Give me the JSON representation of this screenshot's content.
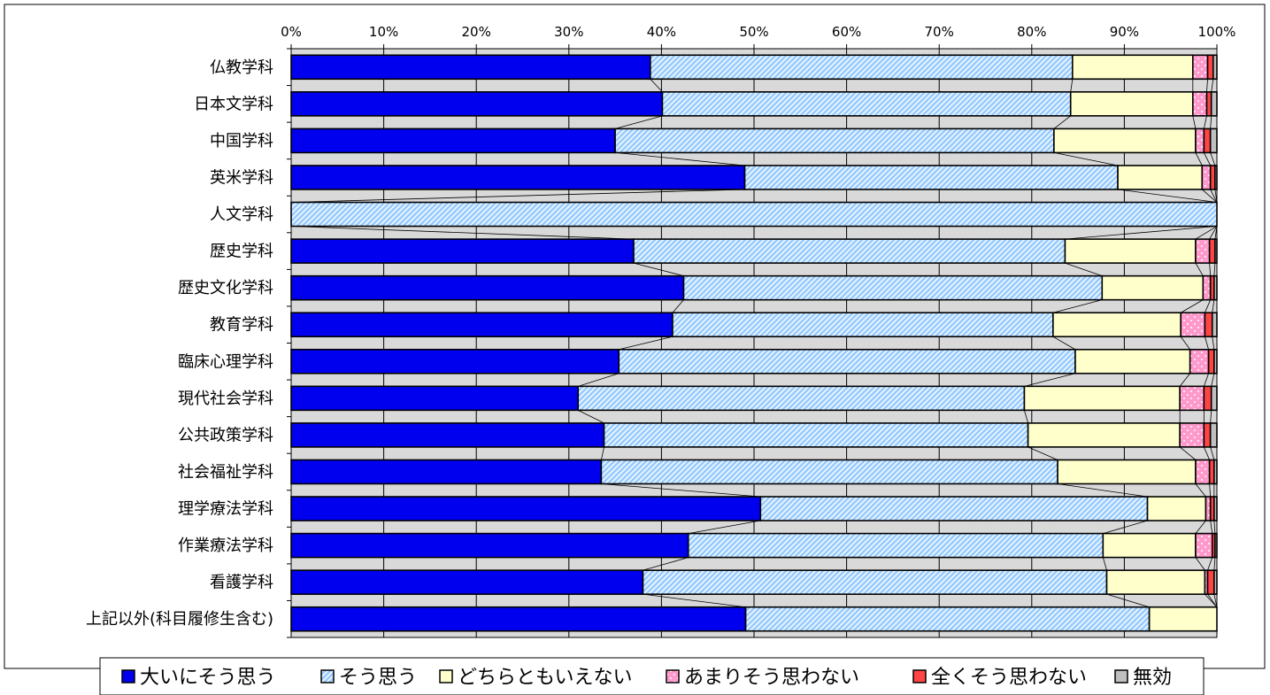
{
  "chart_data": {
    "type": "bar",
    "orientation": "horizontal",
    "stacked": true,
    "percent": true,
    "x_ticks": [
      "0%",
      "10%",
      "20%",
      "30%",
      "40%",
      "50%",
      "60%",
      "70%",
      "80%",
      "90%",
      "100%"
    ],
    "xlim": [
      0,
      100
    ],
    "grid": true,
    "legend_position": "bottom",
    "categories": [
      "仏教学科",
      "日本文学科",
      "中国学科",
      "英米学科",
      "人文学科",
      "歴史学科",
      "歴史文化学科",
      "教育学科",
      "臨床心理学科",
      "現代社会学科",
      "公共政策学科",
      "社会福祉学科",
      "理学療法学科",
      "作業療法学科",
      "看護学科",
      "上記以外(科目履修生含む)"
    ],
    "series": [
      {
        "name": "大いにそう思う",
        "color": "#0000ee",
        "pattern": "solid",
        "values": [
          38.8,
          40.1,
          35.0,
          49.0,
          0.0,
          37.0,
          42.4,
          41.2,
          35.4,
          31.0,
          33.8,
          33.5,
          50.7,
          42.9,
          38.0,
          49.1
        ]
      },
      {
        "name": "そう思う",
        "color": "#99ccff",
        "pattern": "diagonal",
        "values": [
          45.6,
          44.1,
          47.4,
          40.3,
          100.0,
          46.6,
          45.2,
          41.1,
          49.3,
          48.2,
          45.8,
          49.3,
          41.8,
          44.8,
          50.1,
          43.6
        ]
      },
      {
        "name": "どちらともいえない",
        "color": "#ffffcc",
        "pattern": "solid",
        "values": [
          13.0,
          13.2,
          15.3,
          9.1,
          0.0,
          14.1,
          10.9,
          13.8,
          12.4,
          16.8,
          16.4,
          14.9,
          6.3,
          10.0,
          10.6,
          7.3
        ]
      },
      {
        "name": "あまりそう思わない",
        "color": "#ff99cc",
        "pattern": "dotted",
        "values": [
          1.6,
          1.5,
          0.9,
          0.9,
          0.0,
          1.5,
          0.8,
          2.6,
          2.0,
          2.6,
          2.6,
          1.5,
          0.5,
          1.8,
          0.3,
          0.0
        ]
      },
      {
        "name": "全くそう思わない",
        "color": "#ff4444",
        "pattern": "solid",
        "values": [
          0.6,
          0.5,
          0.7,
          0.5,
          0.0,
          0.6,
          0.4,
          0.8,
          0.6,
          0.8,
          0.7,
          0.5,
          0.4,
          0.3,
          0.7,
          0.0
        ]
      },
      {
        "name": "無効",
        "color": "#c0c0c0",
        "pattern": "solid",
        "values": [
          0.4,
          0.6,
          0.7,
          0.2,
          0.0,
          0.2,
          0.3,
          0.5,
          0.3,
          0.6,
          0.7,
          0.3,
          0.3,
          0.2,
          0.3,
          0.0
        ]
      }
    ]
  }
}
